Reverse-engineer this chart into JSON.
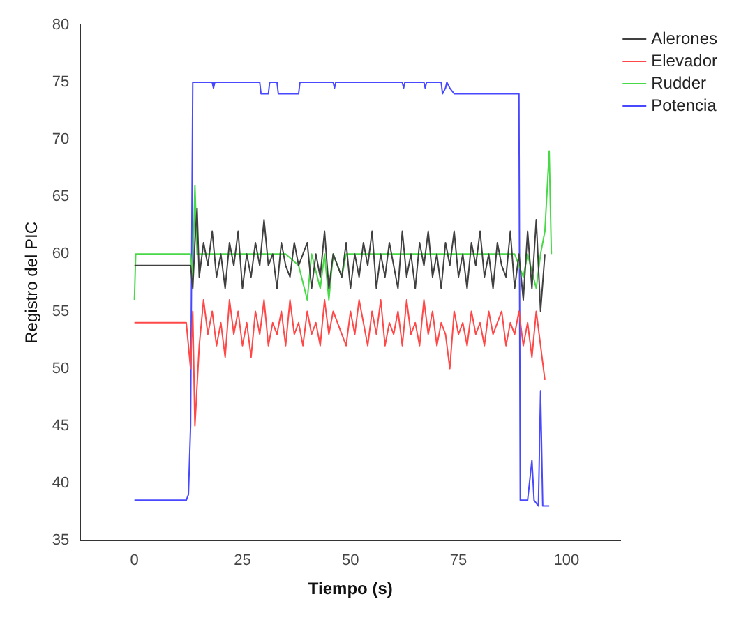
{
  "chart_data": {
    "type": "line",
    "xlabel": "Tiempo (s)",
    "ylabel": "Registro del PIC",
    "xlim": [
      -12.5,
      112.5
    ],
    "xticks": [
      0,
      25,
      50,
      75,
      100
    ],
    "ylim": [
      35,
      80
    ],
    "yticks": [
      35,
      40,
      45,
      50,
      55,
      60,
      65,
      70,
      75,
      80
    ],
    "grid": false,
    "legend": "top right",
    "marker": "none",
    "line_style": "solid",
    "series": [
      {
        "name": "Alerones",
        "color": "#404040",
        "x": [
          0,
          13,
          13.5,
          14,
          14.5,
          15,
          16,
          17,
          18,
          19,
          20,
          21,
          22,
          23,
          24,
          25,
          26,
          27,
          28,
          29,
          30,
          31,
          32,
          33,
          34,
          35,
          36,
          37,
          38,
          40,
          41,
          42,
          43,
          44,
          45,
          46,
          47,
          48,
          49,
          50,
          51,
          52,
          53,
          54,
          55,
          56,
          57,
          58,
          59,
          60,
          61,
          62,
          63,
          64,
          65,
          66,
          67,
          68,
          69,
          70,
          71,
          72,
          73,
          74,
          75,
          76,
          77,
          78,
          79,
          80,
          81,
          82,
          83,
          84,
          85,
          86,
          87,
          88,
          89,
          90,
          91,
          92,
          93,
          94,
          95
        ],
        "values": [
          59,
          59,
          57,
          61,
          64,
          58,
          61,
          59,
          62,
          58,
          60,
          57,
          61,
          59,
          62,
          57,
          60,
          58,
          61,
          59,
          63,
          59,
          60,
          57,
          61,
          59,
          58,
          61,
          59,
          61,
          57,
          60,
          58,
          62,
          57,
          60,
          59,
          58,
          61,
          57,
          60,
          58,
          61,
          59,
          62,
          57,
          60,
          58,
          61,
          59,
          57,
          62,
          58,
          60,
          57,
          61,
          59,
          62,
          58,
          60,
          57,
          61,
          59,
          62,
          58,
          60,
          57,
          61,
          59,
          62,
          58,
          60,
          57,
          61,
          59,
          58,
          62,
          57,
          60,
          56,
          62,
          57,
          63,
          55,
          60
        ]
      },
      {
        "name": "Elevador",
        "color": "#ff4848",
        "x": [
          0,
          12,
          12.5,
          13,
          13.5,
          14,
          15,
          16,
          17,
          18,
          19,
          20,
          21,
          22,
          23,
          24,
          25,
          26,
          27,
          28,
          29,
          30,
          31,
          32,
          33,
          34,
          35,
          36,
          37,
          38,
          39,
          40,
          41,
          42,
          43,
          44,
          45,
          46,
          47,
          48,
          49,
          50,
          51,
          52,
          53,
          54,
          55,
          56,
          57,
          58,
          59,
          60,
          61,
          62,
          63,
          64,
          65,
          66,
          67,
          68,
          69,
          70,
          71,
          72,
          73,
          74,
          75,
          76,
          77,
          78,
          79,
          80,
          81,
          82,
          83,
          84,
          85,
          86,
          87,
          88,
          89,
          90,
          91,
          92,
          93,
          94,
          95
        ],
        "values": [
          54,
          54,
          52,
          50,
          55,
          45,
          52,
          56,
          53,
          55,
          52,
          54,
          51,
          56,
          53,
          55,
          52,
          54,
          51,
          55,
          53,
          56,
          52,
          54,
          53,
          55,
          52,
          56,
          53,
          54,
          52,
          55,
          53,
          54,
          52,
          56,
          53,
          55,
          54,
          53,
          52,
          55,
          53,
          56,
          54,
          52,
          55,
          53,
          56,
          52,
          54,
          53,
          55,
          52,
          56,
          53,
          54,
          52,
          56,
          53,
          55,
          52,
          54,
          53,
          50,
          55,
          53,
          54,
          52,
          55,
          53,
          54,
          52,
          55,
          53,
          54,
          55,
          52,
          54,
          53,
          55,
          52,
          54,
          51,
          55,
          52,
          49
        ]
      },
      {
        "name": "Rudder",
        "color": "#48d848",
        "x": [
          0,
          0.3,
          13,
          13.5,
          14,
          14.5,
          16,
          30,
          35,
          38,
          40,
          41,
          43,
          44,
          45,
          46,
          48,
          49,
          55,
          60,
          70,
          80,
          88,
          90,
          91,
          93,
          94,
          95,
          96,
          96.5
        ],
        "values": [
          56,
          60,
          60,
          58,
          66,
          60,
          60,
          60,
          60,
          59,
          56,
          60,
          57,
          60,
          56,
          60,
          58,
          60,
          60,
          60,
          60,
          60,
          60,
          58,
          60,
          57,
          60,
          62,
          69,
          60
        ]
      },
      {
        "name": "Potencia",
        "color": "#4848ff",
        "x": [
          0,
          12,
          12.5,
          13,
          13.5,
          18,
          18.3,
          18.6,
          29,
          29.3,
          31,
          31.3,
          33,
          33.3,
          38,
          38.3,
          46,
          46.3,
          46.6,
          62,
          62.3,
          62.6,
          67,
          67.3,
          67.6,
          71,
          71.3,
          72,
          72.3,
          73,
          74,
          89,
          89.3,
          91,
          92,
          92.5,
          93.5,
          94,
          94.5,
          96
        ],
        "values": [
          38.5,
          38.5,
          39,
          45,
          75,
          75,
          74.5,
          75,
          75,
          74,
          74,
          75,
          75,
          74,
          74,
          75,
          75,
          74.5,
          75,
          75,
          74.5,
          75,
          75,
          74.5,
          75,
          75,
          74,
          74.5,
          75,
          74.5,
          74,
          74,
          38.5,
          38.5,
          42,
          38.5,
          38,
          48,
          38,
          38
        ]
      }
    ]
  }
}
